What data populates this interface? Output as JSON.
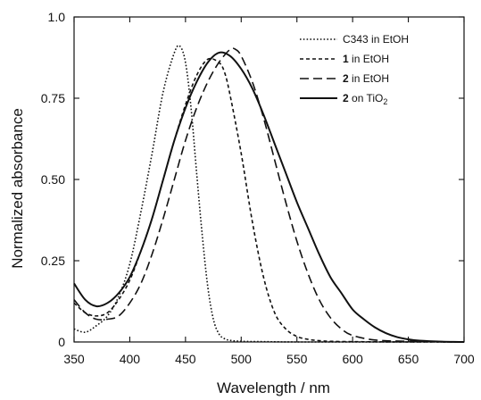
{
  "chart_data": {
    "type": "line",
    "xlabel": "Wavelength / nm",
    "ylabel": "Normalized absorbance",
    "xlim": [
      350,
      700
    ],
    "ylim": [
      0,
      1.0
    ],
    "x_ticks": [
      350,
      400,
      450,
      500,
      550,
      600,
      650,
      700
    ],
    "x_tick_labels": [
      "350",
      "400",
      "450",
      "500",
      "550",
      "600",
      "650",
      "700"
    ],
    "y_ticks": [
      0,
      0.25,
      0.5,
      0.75,
      1.0
    ],
    "y_tick_labels": [
      "0",
      "0.25",
      "0.50",
      "0.75",
      "1.0"
    ],
    "grid": false,
    "legend_position": "top-right",
    "series": [
      {
        "name": "C343 in EtOH",
        "label_bold": "",
        "label_rest": "C343 in EtOH",
        "line_style": "dotted",
        "x": [
          350,
          360,
          370,
          380,
          390,
          400,
          410,
          420,
          430,
          440,
          445,
          450,
          455,
          460,
          465,
          470,
          475,
          480,
          485,
          490,
          500,
          520,
          550,
          600,
          650,
          700
        ],
        "y": [
          0.04,
          0.03,
          0.05,
          0.08,
          0.14,
          0.24,
          0.4,
          0.58,
          0.77,
          0.89,
          0.91,
          0.86,
          0.72,
          0.52,
          0.33,
          0.17,
          0.07,
          0.025,
          0.01,
          0.005,
          0.002,
          0.001,
          0,
          0,
          0,
          0
        ]
      },
      {
        "name": "1 in EtOH",
        "label_bold": "1",
        "label_rest": " in EtOH",
        "line_style": "short-dashed",
        "x": [
          350,
          360,
          370,
          380,
          390,
          400,
          410,
          420,
          430,
          440,
          450,
          460,
          470,
          480,
          485,
          490,
          500,
          510,
          520,
          530,
          540,
          550,
          560,
          570,
          580,
          600,
          650,
          700
        ],
        "y": [
          0.12,
          0.09,
          0.08,
          0.09,
          0.13,
          0.19,
          0.28,
          0.38,
          0.5,
          0.62,
          0.73,
          0.82,
          0.87,
          0.86,
          0.83,
          0.76,
          0.58,
          0.37,
          0.2,
          0.09,
          0.04,
          0.017,
          0.008,
          0.004,
          0.002,
          0.001,
          0,
          0
        ]
      },
      {
        "name": "2 in EtOH",
        "label_bold": "2",
        "label_rest": " in EtOH",
        "line_style": "long-dashed",
        "x": [
          350,
          360,
          370,
          380,
          390,
          400,
          410,
          420,
          430,
          440,
          450,
          460,
          470,
          480,
          490,
          495,
          500,
          510,
          520,
          530,
          540,
          550,
          560,
          570,
          580,
          590,
          600,
          620,
          650,
          700
        ],
        "y": [
          0.13,
          0.09,
          0.07,
          0.07,
          0.08,
          0.12,
          0.18,
          0.27,
          0.38,
          0.5,
          0.62,
          0.72,
          0.8,
          0.86,
          0.9,
          0.9,
          0.88,
          0.8,
          0.69,
          0.56,
          0.43,
          0.31,
          0.21,
          0.13,
          0.075,
          0.04,
          0.02,
          0.006,
          0.002,
          0
        ]
      },
      {
        "name": "2 on TiO2",
        "label_bold": "2",
        "label_rest": " on TiO",
        "label_sub": "2",
        "line_style": "solid",
        "x": [
          350,
          360,
          370,
          380,
          390,
          400,
          410,
          420,
          430,
          440,
          450,
          460,
          470,
          480,
          490,
          500,
          510,
          520,
          530,
          540,
          550,
          560,
          570,
          580,
          590,
          600,
          610,
          620,
          630,
          640,
          650,
          660,
          680,
          700
        ],
        "y": [
          0.18,
          0.13,
          0.11,
          0.12,
          0.15,
          0.2,
          0.28,
          0.38,
          0.5,
          0.62,
          0.72,
          0.8,
          0.86,
          0.89,
          0.88,
          0.84,
          0.78,
          0.7,
          0.61,
          0.52,
          0.43,
          0.35,
          0.27,
          0.2,
          0.15,
          0.1,
          0.07,
          0.045,
          0.027,
          0.015,
          0.008,
          0.004,
          0.001,
          0
        ]
      }
    ]
  }
}
